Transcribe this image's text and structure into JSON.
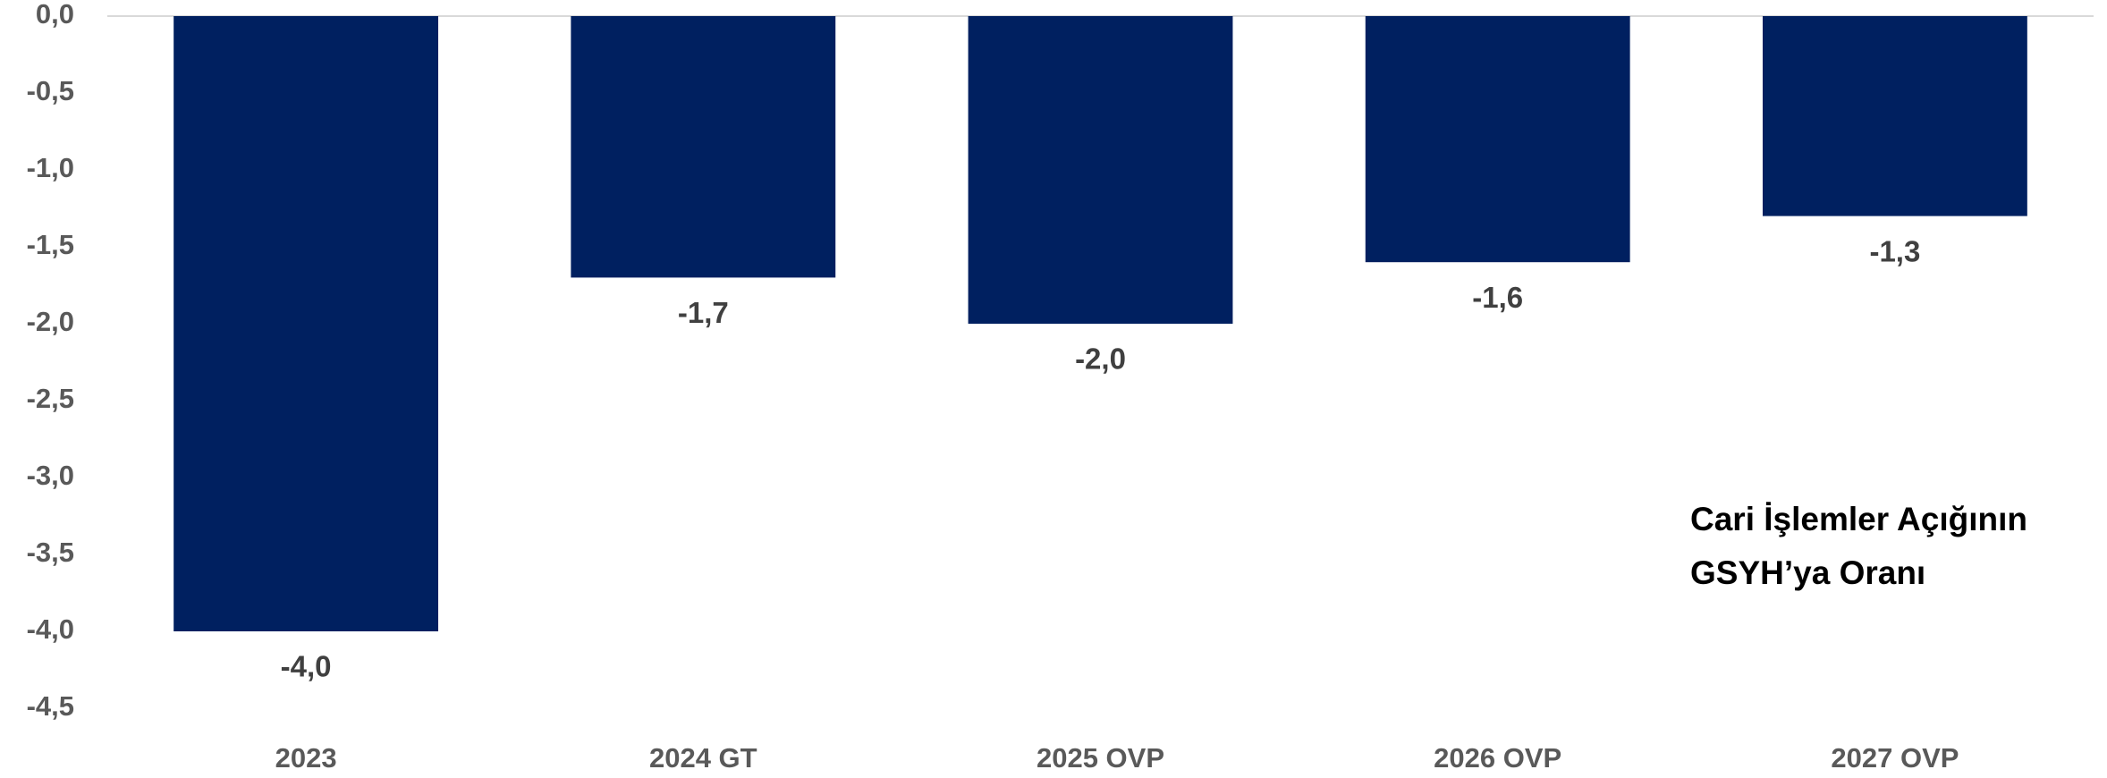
{
  "chart_data": {
    "type": "bar",
    "annotation": [
      "Cari İşlemler Açığının",
      "GSYH’ya Oranı"
    ],
    "categories": [
      "2023",
      "2024 GT",
      "2025 OVP",
      "2026 OVP",
      "2027 OVP"
    ],
    "values": [
      -4.0,
      -1.7,
      -2.0,
      -1.6,
      -1.3
    ],
    "value_labels": [
      "-4,0",
      "-1,7",
      "-2,0",
      "-1,6",
      "-1,3"
    ],
    "color": "#002060",
    "ylim": [
      -4.5,
      0
    ],
    "yticks": [
      {
        "value": 0,
        "label": "0,0"
      },
      {
        "value": -0.5,
        "label": "-0,5"
      },
      {
        "value": -1,
        "label": "-1,0"
      },
      {
        "value": -1.5,
        "label": "-1,5"
      },
      {
        "value": -2,
        "label": "-2,0"
      },
      {
        "value": -2.5,
        "label": "-2,5"
      },
      {
        "value": -3,
        "label": "-3,0"
      },
      {
        "value": -3.5,
        "label": "-3,5"
      },
      {
        "value": -4,
        "label": "-4,0"
      },
      {
        "value": -4.5,
        "label": "-4,5"
      }
    ],
    "grid": false
  }
}
